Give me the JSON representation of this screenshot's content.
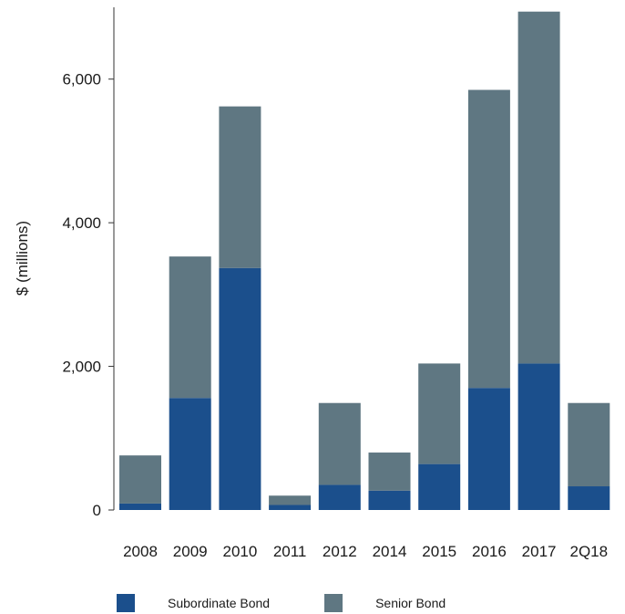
{
  "chart_data": {
    "type": "bar",
    "stacked": true,
    "categories": [
      "2008",
      "2009",
      "2010",
      "2011",
      "2012",
      "2014",
      "2015",
      "2016",
      "2017",
      "2Q18"
    ],
    "series": [
      {
        "name": "Subordinate Bond",
        "color": "#1b4f8c",
        "values": [
          90,
          1560,
          3370,
          70,
          350,
          270,
          640,
          1700,
          2040,
          330
        ]
      },
      {
        "name": "Senior Bond",
        "color": "#5f7782",
        "values": [
          670,
          1970,
          2250,
          130,
          1140,
          530,
          1400,
          4150,
          4900,
          1160
        ]
      }
    ],
    "ylabel": "$ (millions)",
    "xlabel": "",
    "ylim": [
      0,
      7000
    ],
    "yticks": [
      0,
      2000,
      4000,
      6000
    ],
    "ytick_labels": [
      "0",
      "2,000",
      "4,000",
      "6,000"
    ],
    "grid": false,
    "legend_position": "bottom"
  }
}
